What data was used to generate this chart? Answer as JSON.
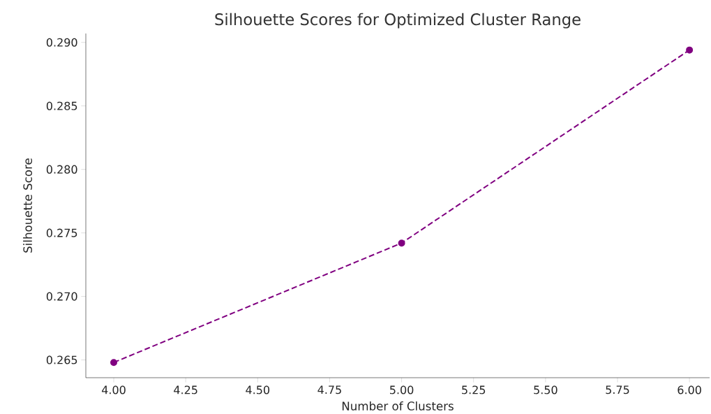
{
  "chart_data": {
    "type": "line",
    "title": "Silhouette Scores for Optimized Cluster Range",
    "xlabel": "Number of Clusters",
    "ylabel": "Silhouette Score",
    "x": [
      4,
      5,
      6
    ],
    "series": [
      {
        "color": "#800080",
        "values": [
          0.2648,
          0.2742,
          0.2894
        ]
      }
    ],
    "marker": "circle",
    "line_style": "dashed",
    "grid": false,
    "xlim": [
      3.903,
      6.07
    ],
    "ylim": [
      0.2636,
      0.2907
    ],
    "xticks": [
      {
        "value": 4,
        "label": "4.00"
      },
      {
        "value": 4.25,
        "label": "4.25"
      },
      {
        "value": 4.5,
        "label": "4.50"
      },
      {
        "value": 4.75,
        "label": "4.75"
      },
      {
        "value": 5,
        "label": "5.00"
      },
      {
        "value": 5.25,
        "label": "5.25"
      },
      {
        "value": 5.5,
        "label": "5.50"
      },
      {
        "value": 5.75,
        "label": "5.75"
      },
      {
        "value": 6,
        "label": "6.00"
      }
    ],
    "yticks": [
      {
        "value": 0.265,
        "label": "0.265"
      },
      {
        "value": 0.27,
        "label": "0.270"
      },
      {
        "value": 0.275,
        "label": "0.275"
      },
      {
        "value": 0.28,
        "label": "0.280"
      },
      {
        "value": 0.285,
        "label": "0.285"
      },
      {
        "value": 0.29,
        "label": "0.290"
      }
    ]
  }
}
